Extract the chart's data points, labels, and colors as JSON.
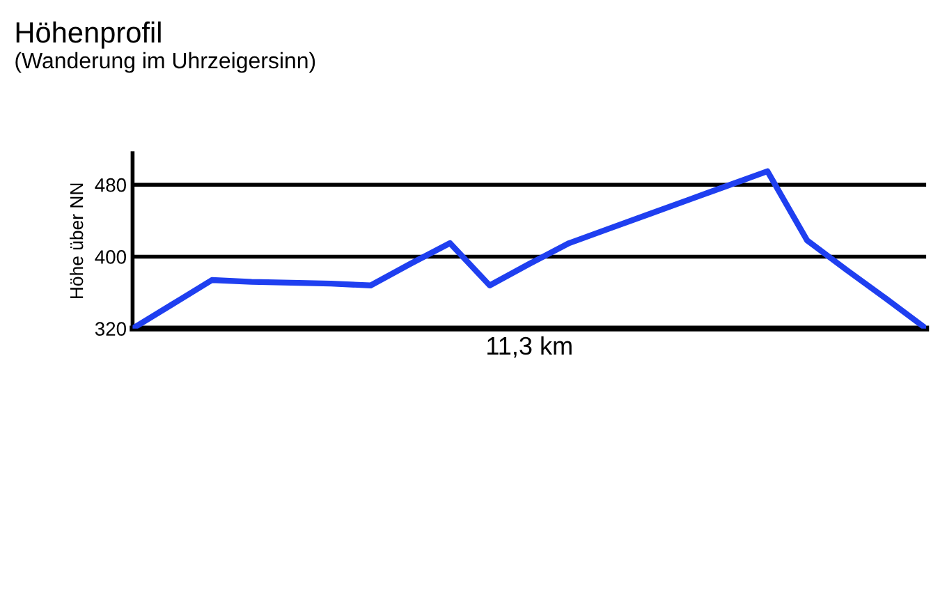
{
  "chart_data": {
    "type": "line",
    "title": "Höhenprofil",
    "subtitle": "(Wanderung im Uhrzeigersinn)",
    "xlabel": "11,3 km",
    "ylabel": "Höhe über NN",
    "categories": [
      null,
      null,
      null,
      null,
      null,
      null,
      null,
      null,
      null,
      null,
      null,
      null,
      null,
      null,
      null,
      null,
      null,
      null,
      null,
      null,
      null
    ],
    "series": [
      {
        "color": "#1f3ff0",
        "values": [
          320,
          347,
          374,
          372,
          371,
          370,
          368,
          392,
          415,
          368,
          392,
          415,
          431,
          447,
          463,
          479,
          495,
          418,
          385,
          353,
          320
        ]
      }
    ],
    "ylim": [
      320,
      515
    ],
    "yticks": [
      320,
      400,
      480
    ],
    "grid": "y",
    "tick_labels": "y",
    "marker": "none",
    "line_style": "solid"
  }
}
